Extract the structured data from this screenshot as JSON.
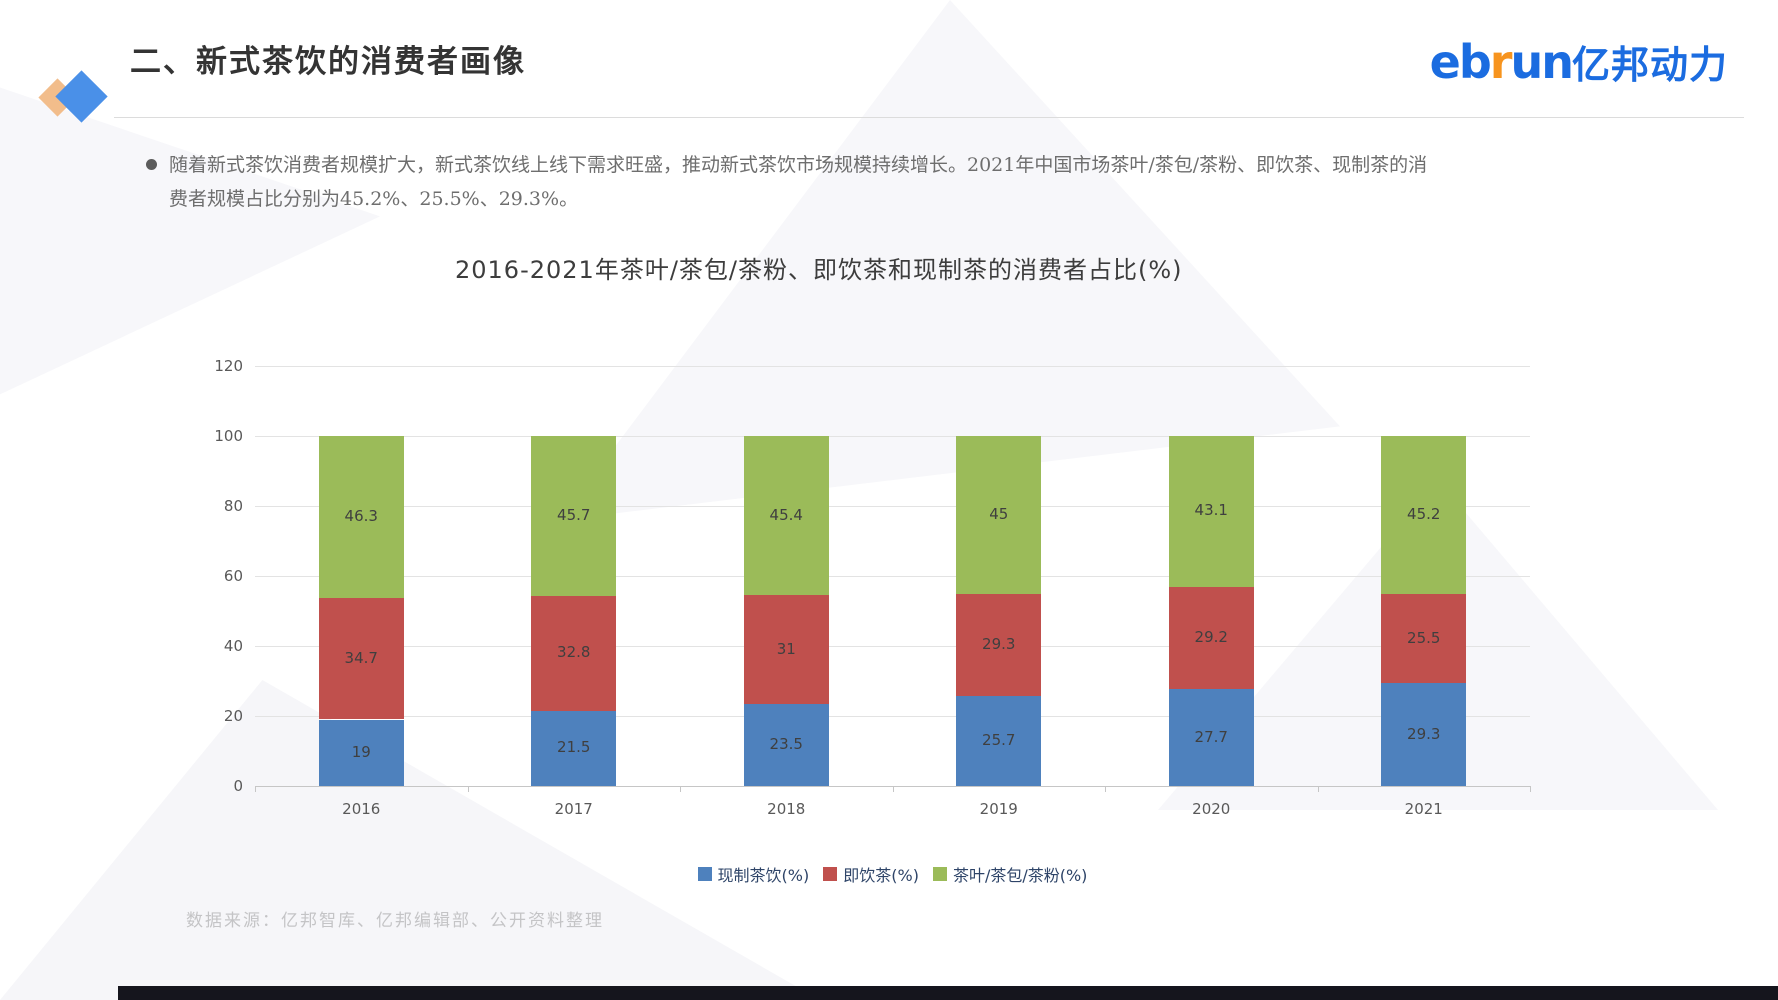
{
  "page": {
    "title": "二、新式茶饮的消费者画像",
    "bullet": "随着新式茶饮消费者规模扩大，新式茶饮线上线下需求旺盛，推动新式茶饮市场规模持续增长。2021年中国市场茶叶/茶包/茶粉、即饮茶、现制茶的消费者规模占比分别为45.2%、25.5%、29.3%。",
    "source": "数据来源：亿邦智库、亿邦编辑部、公开资料整理"
  },
  "logo": {
    "en_prefix": "eb",
    "en_accent": "r",
    "en_suffix": "un",
    "cn": "亿邦动力",
    "blue": "#1b6ce0",
    "orange": "#f7941e"
  },
  "chart_data": {
    "type": "bar",
    "stacked": true,
    "title": "2016-2021年茶叶/茶包/茶粉、即饮茶和现制茶的消费者占比(%)",
    "categories": [
      "2016",
      "2017",
      "2018",
      "2019",
      "2020",
      "2021"
    ],
    "series": [
      {
        "name": "现制茶饮(%)",
        "color": "#4E81BD",
        "values": [
          19,
          21.5,
          23.5,
          25.7,
          27.7,
          29.3
        ]
      },
      {
        "name": "即饮茶(%)",
        "color": "#C0504D",
        "values": [
          34.7,
          32.8,
          31,
          29.3,
          29.2,
          25.5
        ]
      },
      {
        "name": "茶叶/茶包/茶粉(%)",
        "color": "#9BBB59",
        "values": [
          46.3,
          45.7,
          45.4,
          45,
          43.1,
          45.2
        ]
      }
    ],
    "ylim": [
      0,
      120
    ],
    "yticks": [
      0,
      20,
      40,
      60,
      80,
      100,
      120
    ],
    "grid": true,
    "legend_position": "bottom"
  }
}
